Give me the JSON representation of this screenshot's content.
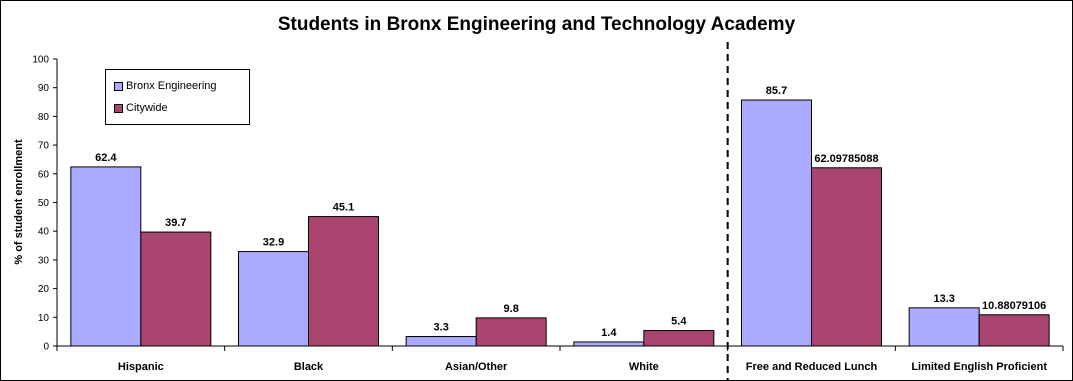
{
  "chart_data": {
    "type": "bar",
    "title": "Students in Bronx Engineering and Technology Academy",
    "xlabel": "",
    "ylabel": "% of student enrollment",
    "ylim": [
      0,
      100
    ],
    "yticks": [
      0,
      10,
      20,
      30,
      40,
      50,
      60,
      70,
      80,
      90,
      100
    ],
    "categories": [
      "Hispanic",
      "Black",
      "Asian/Other",
      "White",
      "Free and Reduced Lunch",
      "Limited English Proficient"
    ],
    "series": [
      {
        "name": "Bronx Engineering",
        "color": "#aaaaff",
        "values": [
          62.4,
          32.9,
          3.3,
          1.4,
          85.7,
          13.3
        ],
        "labels": [
          "62.4",
          "32.9",
          "3.3",
          "1.4",
          "85.7",
          "13.3"
        ]
      },
      {
        "name": "Citywide",
        "color": "#aa4570",
        "values": [
          39.7,
          45.1,
          9.8,
          5.4,
          62.09785088,
          10.88079106
        ],
        "labels": [
          "39.7",
          "45.1",
          "9.8",
          "5.4",
          "62.09785088",
          "10.88079106"
        ]
      }
    ],
    "separator_after_category": 3,
    "legend_position": "top-left",
    "grid": false
  }
}
